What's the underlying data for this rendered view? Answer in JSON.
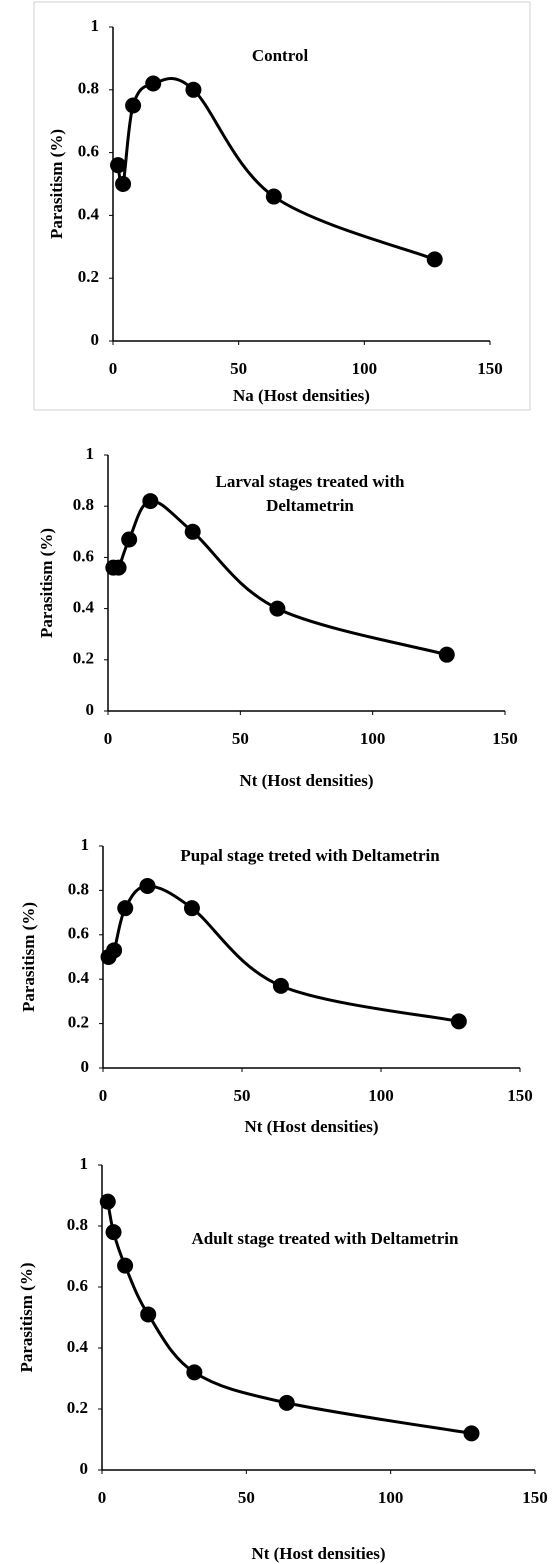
{
  "chart_data": [
    {
      "type": "line",
      "title": "Control",
      "x_label": "Na (Host densities)",
      "y_label": "Parasitism (%)",
      "x": [
        2,
        4,
        8,
        16,
        32,
        64,
        128
      ],
      "series": [
        {
          "name": "Control",
          "color": "#000000",
          "values": [
            0.56,
            0.5,
            0.75,
            0.82,
            0.8,
            0.46,
            0.26
          ]
        }
      ],
      "xlim": [
        0,
        150
      ],
      "xticks": [
        0,
        50,
        100,
        150
      ],
      "ylim": [
        0,
        1
      ],
      "yticks": [
        0,
        0.2,
        0.4,
        0.6,
        0.8,
        1
      ]
    },
    {
      "type": "line",
      "title": "Larval stages treated with Deltametrin",
      "x_label": "Nt (Host densities)",
      "y_label": "Parasitism (%)",
      "x": [
        2,
        4,
        8,
        16,
        32,
        64,
        128
      ],
      "series": [
        {
          "name": "Larval",
          "color": "#000000",
          "values": [
            0.56,
            0.56,
            0.67,
            0.82,
            0.7,
            0.4,
            0.22
          ]
        }
      ],
      "xlim": [
        0,
        150
      ],
      "xticks": [
        0,
        50,
        100,
        150
      ],
      "ylim": [
        0,
        1
      ],
      "yticks": [
        0,
        0.2,
        0.4,
        0.6,
        0.8,
        1
      ]
    },
    {
      "type": "line",
      "title": "Pupal stage treted with Deltametrin",
      "x_label": "Nt (Host densities)",
      "y_label": "Parasitism (%)",
      "x": [
        2,
        4,
        8,
        16,
        32,
        64,
        128
      ],
      "series": [
        {
          "name": "Pupal",
          "color": "#000000",
          "values": [
            0.5,
            0.53,
            0.72,
            0.82,
            0.72,
            0.37,
            0.21
          ]
        }
      ],
      "xlim": [
        0,
        150
      ],
      "xticks": [
        0,
        50,
        100,
        150
      ],
      "ylim": [
        0,
        1
      ],
      "yticks": [
        0,
        0.2,
        0.4,
        0.6,
        0.8,
        1
      ]
    },
    {
      "type": "line",
      "title": "Adult stage treated with Deltametrin",
      "x_label": "Nt (Host densities)",
      "y_label": "Parasitism (%)",
      "x": [
        2,
        4,
        8,
        16,
        32,
        64,
        128
      ],
      "series": [
        {
          "name": "Adult",
          "color": "#000000",
          "values": [
            0.88,
            0.78,
            0.67,
            0.51,
            0.32,
            0.22,
            0.12
          ]
        }
      ],
      "xlim": [
        0,
        150
      ],
      "xticks": [
        0,
        50,
        100,
        150
      ],
      "ylim": [
        0,
        1
      ],
      "yticks": [
        0,
        0.2,
        0.4,
        0.6,
        0.8,
        1
      ]
    }
  ]
}
